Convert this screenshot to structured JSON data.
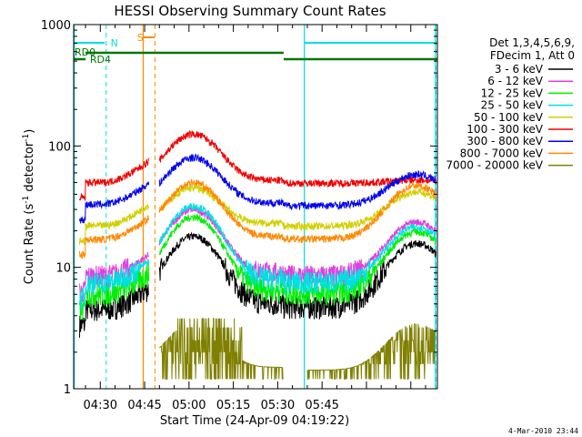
{
  "chart_data": {
    "type": "line",
    "title": "HESSI Observing Summary Count Rates",
    "xlabel": "Start Time (24-Apr-09 04:19:22)",
    "ylabel_main": "Count Rate (s",
    "ylabel_sup1": "-1",
    "ylabel_mid": " detector",
    "ylabel_sup2": "-1",
    "ylabel_end": ")",
    "y_scale": "log",
    "ylim": [
      1,
      1000
    ],
    "xlim_min": [
      261,
      384
    ],
    "yticks": [
      {
        "v": 1,
        "label": "1"
      },
      {
        "v": 10,
        "label": "10"
      },
      {
        "v": 100,
        "label": "100"
      },
      {
        "v": 1000,
        "label": "1000"
      }
    ],
    "xticks": [
      {
        "m": 270,
        "label": "04:30"
      },
      {
        "m": 285,
        "label": "04:45"
      },
      {
        "m": 300,
        "label": "05:00"
      },
      {
        "m": 315,
        "label": "05:15"
      },
      {
        "m": 330,
        "label": "05:30"
      },
      {
        "m": 345,
        "label": "05:45"
      }
    ],
    "legend_header": [
      "Det 1,3,4,5,6,9,",
      "FDecim 1, Att 0"
    ],
    "legend_position": "right",
    "series": [
      {
        "name": "3 - 6 keV",
        "color": "#000000",
        "left": 4.5,
        "right": 5.0,
        "peak": 18,
        "r2peak": 16
      },
      {
        "name": "6 - 12 keV",
        "color": "#e040e0",
        "left": 8.5,
        "right": 9.0,
        "peak": 30,
        "r2peak": 24
      },
      {
        "name": "12 - 25 keV",
        "color": "#00ee00",
        "left": 6.0,
        "right": 6.5,
        "peak": 26,
        "r2peak": 20
      },
      {
        "name": "25 - 50 keV",
        "color": "#00e0e0",
        "left": 7.5,
        "right": 8.0,
        "peak": 32,
        "r2peak": 22
      },
      {
        "name": "50 - 100 keV",
        "color": "#d0d000",
        "left": 22,
        "right": 23,
        "peak": 45,
        "r2peak": 43
      },
      {
        "name": "100 - 300 keV",
        "color": "#ee0000",
        "left": 50,
        "right": 52,
        "peak": 125,
        "r2peak": 55
      },
      {
        "name": "300 - 800 keV",
        "color": "#0000ee",
        "left": 33,
        "right": 34,
        "peak": 80,
        "r2peak": 60
      },
      {
        "name": "800 - 7000 keV",
        "color": "#ff8800",
        "left": 17,
        "right": 18,
        "peak": 50,
        "r2peak": 48
      },
      {
        "name": "7000 - 20000 keV",
        "color": "#808000",
        "left": 1.5,
        "right": 1.5,
        "peak": 3.5,
        "r2peak": 3.5
      }
    ],
    "annotations": {
      "saa_label": "S",
      "night_label": "N",
      "rd0_label": "RD0",
      "rd4_label": "RD4",
      "saa_color": "#ff8800",
      "night_color": "#00e0e0",
      "rd_color": "#007700"
    },
    "timestamp": "4-Mar-2010 23:44"
  }
}
